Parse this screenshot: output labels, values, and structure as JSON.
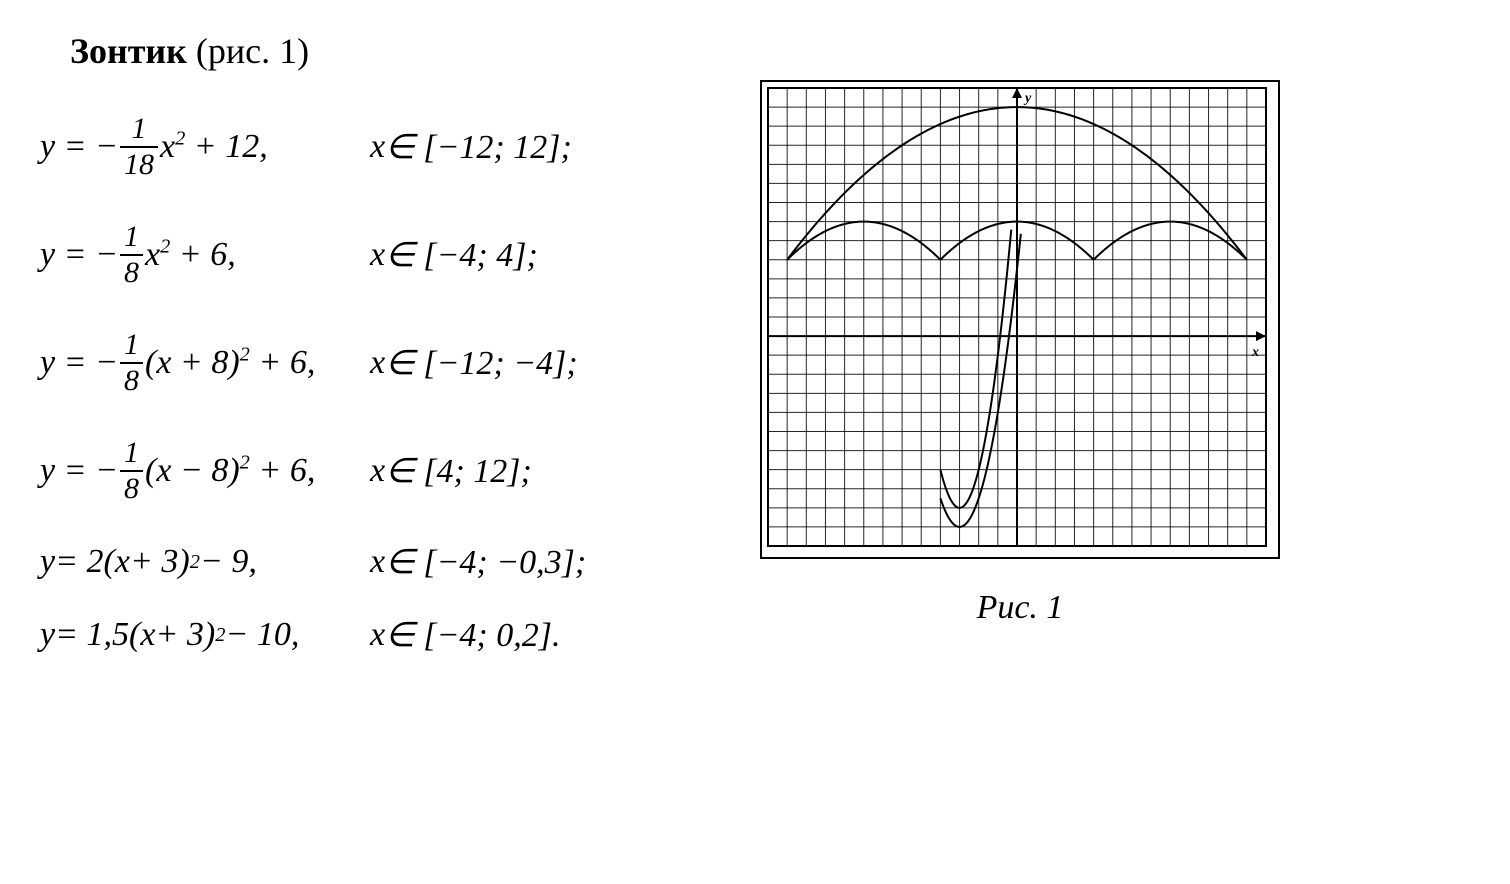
{
  "title": {
    "bold": "Зонтик",
    "rest": " (рис. 1)"
  },
  "equations": [
    {
      "lhs_pre": "y = −",
      "frac_num": "1",
      "frac_den": "18",
      "lhs_post": "x² + 12,",
      "domain": "x ∈ [−12; 12];",
      "has_frac": true
    },
    {
      "lhs_pre": "y = −",
      "frac_num": "1",
      "frac_den": "8",
      "lhs_post": "x² + 6,",
      "domain": "x ∈ [−4; 4];",
      "has_frac": true
    },
    {
      "lhs_pre": "y = −",
      "frac_num": "1",
      "frac_den": "8",
      "lhs_post": "(x + 8)² + 6,",
      "domain": "x ∈ [−12; −4];",
      "has_frac": true
    },
    {
      "lhs_pre": "y = −",
      "frac_num": "1",
      "frac_den": "8",
      "lhs_post": "(x − 8)² + 6,",
      "domain": "x ∈ [4; 12];",
      "has_frac": true
    },
    {
      "lhs_pre": "y = 2(x + 3)² − 9,",
      "domain": "x ∈ [−4; −0,3];",
      "has_frac": false
    },
    {
      "lhs_pre": "y = 1,5(x + 3)² − 10,",
      "domain": "x ∈ [−4; 0,2].",
      "has_frac": false
    }
  ],
  "chart": {
    "type": "line",
    "caption": "Рис. 1",
    "axis_labels": {
      "x": "x",
      "y": "y"
    },
    "xlim": [
      -13,
      13
    ],
    "ylim": [
      -11,
      13
    ],
    "grid_step": 1,
    "background_color": "#ffffff",
    "grid_color": "#000000",
    "frame_color": "#000000",
    "frame_width": 2,
    "curve_color": "#000000",
    "curve_width": 2,
    "grid_stroke_width": 1,
    "axis_stroke_width": 2,
    "label_fontsize": 14,
    "curves": [
      {
        "fn": "canopy_top",
        "a": -0.0555556,
        "h": 0,
        "k": 12,
        "domain": [
          -12,
          12
        ]
      },
      {
        "fn": "scallop_center",
        "a": -0.125,
        "h": 0,
        "k": 6,
        "domain": [
          -4,
          4
        ]
      },
      {
        "fn": "scallop_left",
        "a": -0.125,
        "h": -8,
        "k": 6,
        "domain": [
          -12,
          -4
        ]
      },
      {
        "fn": "scallop_right",
        "a": -0.125,
        "h": 8,
        "k": 6,
        "domain": [
          4,
          12
        ]
      },
      {
        "fn": "handle_outer",
        "a": 2,
        "h": -3,
        "k": -9,
        "domain": [
          -4,
          -0.3
        ]
      },
      {
        "fn": "handle_inner",
        "a": 1.5,
        "h": -3,
        "k": -10,
        "domain": [
          -4,
          0.2
        ]
      }
    ]
  }
}
